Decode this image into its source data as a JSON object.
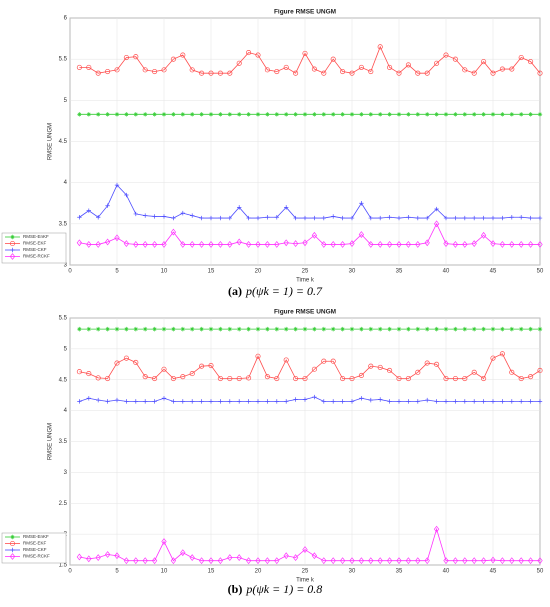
{
  "chart_data": [
    {
      "type": "line",
      "title": "Figure RMSE  UNGM",
      "ylabel": "RMSE  UNGM",
      "xlabel": "Time k",
      "caption_label": "(a)",
      "caption": "p(ψk = 1) = 0.7",
      "xlim": [
        0,
        50
      ],
      "xticks": [
        0,
        5,
        10,
        15,
        20,
        25,
        30,
        35,
        40,
        45,
        50
      ],
      "ylim": [
        3,
        6
      ],
      "yticks": [
        3,
        3.5,
        4,
        4.5,
        5,
        5.5,
        6
      ],
      "grid": true,
      "legend": "lower left",
      "x": [
        1,
        2,
        3,
        4,
        5,
        6,
        7,
        8,
        9,
        10,
        11,
        12,
        13,
        14,
        15,
        16,
        17,
        18,
        19,
        20,
        21,
        22,
        23,
        24,
        25,
        26,
        27,
        28,
        29,
        30,
        31,
        32,
        33,
        34,
        35,
        36,
        37,
        38,
        39,
        40,
        41,
        42,
        43,
        44,
        45,
        46,
        47,
        48,
        49,
        50
      ],
      "series": [
        {
          "name": "RMSE-EnKF",
          "color": "#33cc33",
          "marker": "star",
          "values": [
            4.83,
            4.83,
            4.83,
            4.83,
            4.83,
            4.83,
            4.83,
            4.83,
            4.83,
            4.83,
            4.83,
            4.83,
            4.83,
            4.83,
            4.83,
            4.83,
            4.83,
            4.83,
            4.83,
            4.83,
            4.83,
            4.83,
            4.83,
            4.83,
            4.83,
            4.83,
            4.83,
            4.83,
            4.83,
            4.83,
            4.83,
            4.83,
            4.83,
            4.83,
            4.83,
            4.83,
            4.83,
            4.83,
            4.83,
            4.83,
            4.83,
            4.83,
            4.83,
            4.83,
            4.83,
            4.83,
            4.83,
            4.83,
            4.83,
            4.83
          ]
        },
        {
          "name": "RMSE-EKF",
          "color": "#ff4d4d",
          "marker": "circle",
          "values": [
            5.4,
            5.4,
            5.33,
            5.35,
            5.37,
            5.52,
            5.53,
            5.37,
            5.35,
            5.37,
            5.5,
            5.55,
            5.37,
            5.33,
            5.33,
            5.33,
            5.33,
            5.45,
            5.58,
            5.55,
            5.37,
            5.35,
            5.4,
            5.33,
            5.57,
            5.38,
            5.33,
            5.5,
            5.35,
            5.33,
            5.4,
            5.35,
            5.65,
            5.4,
            5.33,
            5.43,
            5.33,
            5.33,
            5.45,
            5.55,
            5.5,
            5.37,
            5.33,
            5.47,
            5.33,
            5.38,
            5.38,
            5.52,
            5.47,
            5.33
          ]
        },
        {
          "name": "RMSE-CKF",
          "color": "#4d4dff",
          "marker": "plus",
          "values": [
            3.58,
            3.66,
            3.58,
            3.72,
            3.97,
            3.85,
            3.62,
            3.6,
            3.59,
            3.59,
            3.57,
            3.63,
            3.6,
            3.57,
            3.57,
            3.57,
            3.57,
            3.7,
            3.57,
            3.57,
            3.58,
            3.58,
            3.7,
            3.57,
            3.57,
            3.57,
            3.57,
            3.59,
            3.57,
            3.57,
            3.75,
            3.57,
            3.57,
            3.58,
            3.57,
            3.58,
            3.57,
            3.57,
            3.68,
            3.57,
            3.57,
            3.57,
            3.57,
            3.57,
            3.57,
            3.57,
            3.58,
            3.58,
            3.57,
            3.57
          ]
        },
        {
          "name": "RMSE-RCKF",
          "color": "#ff33ff",
          "marker": "diamond",
          "values": [
            3.27,
            3.25,
            3.25,
            3.28,
            3.33,
            3.26,
            3.25,
            3.25,
            3.25,
            3.25,
            3.4,
            3.25,
            3.25,
            3.25,
            3.25,
            3.25,
            3.25,
            3.28,
            3.25,
            3.25,
            3.25,
            3.25,
            3.27,
            3.26,
            3.27,
            3.36,
            3.25,
            3.25,
            3.25,
            3.26,
            3.37,
            3.25,
            3.25,
            3.25,
            3.25,
            3.25,
            3.25,
            3.27,
            3.5,
            3.26,
            3.25,
            3.25,
            3.26,
            3.36,
            3.26,
            3.25,
            3.25,
            3.25,
            3.25,
            3.25
          ]
        }
      ]
    },
    {
      "type": "line",
      "title": "Figure RMSE  UNGM",
      "ylabel": "RMSE  UNGM",
      "xlabel": "Time k",
      "caption_label": "(b)",
      "caption": "p(ψk = 1) = 0.8",
      "xlim": [
        0,
        50
      ],
      "xticks": [
        0,
        5,
        10,
        15,
        20,
        25,
        30,
        35,
        40,
        45,
        50
      ],
      "ylim": [
        1.5,
        5.5
      ],
      "yticks": [
        1.5,
        2,
        2.5,
        3,
        3.5,
        4,
        4.5,
        5,
        5.5
      ],
      "grid": true,
      "legend": "lower left",
      "x": [
        1,
        2,
        3,
        4,
        5,
        6,
        7,
        8,
        9,
        10,
        11,
        12,
        13,
        14,
        15,
        16,
        17,
        18,
        19,
        20,
        21,
        22,
        23,
        24,
        25,
        26,
        27,
        28,
        29,
        30,
        31,
        32,
        33,
        34,
        35,
        36,
        37,
        38,
        39,
        40,
        41,
        42,
        43,
        44,
        45,
        46,
        47,
        48,
        49,
        50
      ],
      "series": [
        {
          "name": "RMSE-EnKF",
          "color": "#33cc33",
          "marker": "star",
          "values": [
            5.32,
            5.32,
            5.32,
            5.32,
            5.32,
            5.32,
            5.32,
            5.32,
            5.32,
            5.32,
            5.32,
            5.32,
            5.32,
            5.32,
            5.32,
            5.32,
            5.32,
            5.32,
            5.32,
            5.32,
            5.32,
            5.32,
            5.32,
            5.32,
            5.32,
            5.32,
            5.32,
            5.32,
            5.32,
            5.32,
            5.32,
            5.32,
            5.32,
            5.32,
            5.32,
            5.32,
            5.32,
            5.32,
            5.32,
            5.32,
            5.32,
            5.32,
            5.32,
            5.32,
            5.32,
            5.32,
            5.32,
            5.32,
            5.32,
            5.32
          ]
        },
        {
          "name": "RMSE-EKF",
          "color": "#ff4d4d",
          "marker": "circle",
          "values": [
            4.63,
            4.6,
            4.53,
            4.52,
            4.77,
            4.85,
            4.78,
            4.55,
            4.52,
            4.67,
            4.52,
            4.55,
            4.6,
            4.72,
            4.73,
            4.52,
            4.52,
            4.52,
            4.53,
            4.88,
            4.55,
            4.52,
            4.82,
            4.52,
            4.52,
            4.67,
            4.8,
            4.8,
            4.52,
            4.52,
            4.57,
            4.72,
            4.7,
            4.65,
            4.52,
            4.52,
            4.62,
            4.77,
            4.75,
            4.52,
            4.52,
            4.52,
            4.62,
            4.52,
            4.85,
            4.92,
            4.62,
            4.52,
            4.55,
            4.65
          ]
        },
        {
          "name": "RMSE-CKF",
          "color": "#4d4dff",
          "marker": "plus",
          "values": [
            4.15,
            4.2,
            4.17,
            4.15,
            4.17,
            4.15,
            4.15,
            4.15,
            4.15,
            4.2,
            4.15,
            4.15,
            4.15,
            4.15,
            4.15,
            4.15,
            4.15,
            4.15,
            4.15,
            4.15,
            4.15,
            4.15,
            4.15,
            4.18,
            4.18,
            4.22,
            4.15,
            4.15,
            4.15,
            4.15,
            4.2,
            4.17,
            4.18,
            4.15,
            4.15,
            4.15,
            4.15,
            4.17,
            4.15,
            4.15,
            4.15,
            4.15,
            4.15,
            4.15,
            4.15,
            4.15,
            4.15,
            4.15,
            4.15,
            4.15
          ]
        },
        {
          "name": "RMSE-RCKF",
          "color": "#ff33ff",
          "marker": "diamond",
          "values": [
            1.63,
            1.6,
            1.62,
            1.67,
            1.65,
            1.57,
            1.57,
            1.57,
            1.57,
            1.88,
            1.57,
            1.7,
            1.62,
            1.57,
            1.57,
            1.57,
            1.62,
            1.62,
            1.57,
            1.57,
            1.57,
            1.57,
            1.65,
            1.62,
            1.75,
            1.65,
            1.57,
            1.57,
            1.57,
            1.57,
            1.57,
            1.57,
            1.57,
            1.57,
            1.57,
            1.57,
            1.57,
            1.57,
            2.08,
            1.57,
            1.57,
            1.57,
            1.57,
            1.57,
            1.58,
            1.57,
            1.57,
            1.57,
            1.57,
            1.57
          ]
        }
      ]
    }
  ]
}
